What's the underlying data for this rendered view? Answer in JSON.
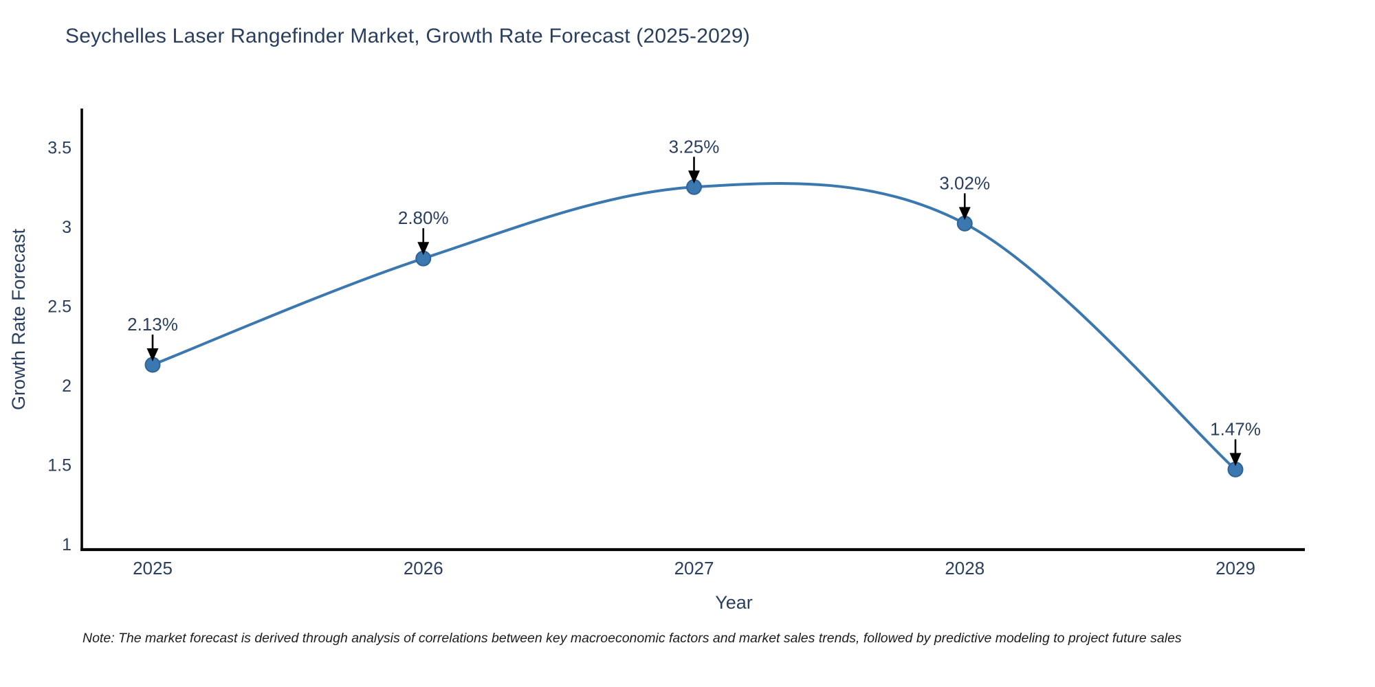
{
  "title": {
    "text": "Seychelles Laser Rangefinder Market, Growth Rate Forecast (2025-2029)",
    "color": "#2a3f5f"
  },
  "note": {
    "text": "Note: The market forecast is derived through analysis of correlations between key macroeconomic factors and market sales trends, followed by predictive modeling to project future sales"
  },
  "chart_data": {
    "type": "line",
    "title": "Seychelles Laser Rangefinder Market, Growth Rate Forecast (2025-2029)",
    "xlabel": "Year",
    "ylabel": "Growth Rate Forecast",
    "x": [
      2025,
      2026,
      2027,
      2028,
      2029
    ],
    "series": [
      {
        "name": "Growth Rate Forecast",
        "values": [
          2.13,
          2.8,
          3.25,
          3.02,
          1.47
        ]
      }
    ],
    "point_labels": [
      "2.13%",
      "2.80%",
      "3.25%",
      "3.02%",
      "1.47%"
    ],
    "x_tick_labels": [
      "2025",
      "2026",
      "2027",
      "2028",
      "2029"
    ],
    "y_ticks": [
      1,
      1.5,
      2,
      2.5,
      3,
      3.5
    ],
    "y_tick_labels": [
      "1",
      "1.5",
      "2",
      "2.5",
      "3",
      "3.5"
    ],
    "xlim": [
      2024.73,
      2029.26
    ],
    "ylim": [
      0.96,
      3.77
    ],
    "line_shape": "spline",
    "grid": false,
    "legend": "none",
    "colors": {
      "line": "#3b78b0",
      "marker": "#3b78b0",
      "marker_edge": "#2f6399",
      "axis": "#000000",
      "tick_text": "#2a3f5f",
      "annotation_text": "#2a3f5f",
      "annotation_arrow": "#000000"
    }
  }
}
